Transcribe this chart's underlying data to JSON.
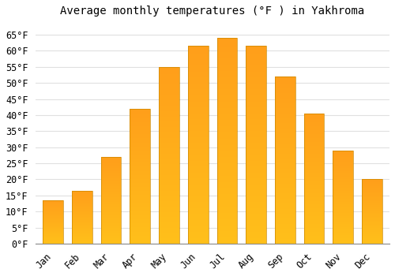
{
  "title": "Average monthly temperatures (°F ) in Yakhroma",
  "months": [
    "Jan",
    "Feb",
    "Mar",
    "Apr",
    "May",
    "Jun",
    "Jul",
    "Aug",
    "Sep",
    "Oct",
    "Nov",
    "Dec"
  ],
  "values": [
    13.5,
    16.5,
    27,
    42,
    55,
    61.5,
    64,
    61.5,
    52,
    40.5,
    29,
    20
  ],
  "bar_color": "#FFA500",
  "bar_edge_color": "#CC8800",
  "background_color": "#FFFFFF",
  "grid_color": "#E0E0E0",
  "ylim": [
    0,
    68
  ],
  "yticks": [
    0,
    5,
    10,
    15,
    20,
    25,
    30,
    35,
    40,
    45,
    50,
    55,
    60,
    65
  ],
  "title_fontsize": 10,
  "tick_fontsize": 8.5,
  "bar_width": 0.7
}
